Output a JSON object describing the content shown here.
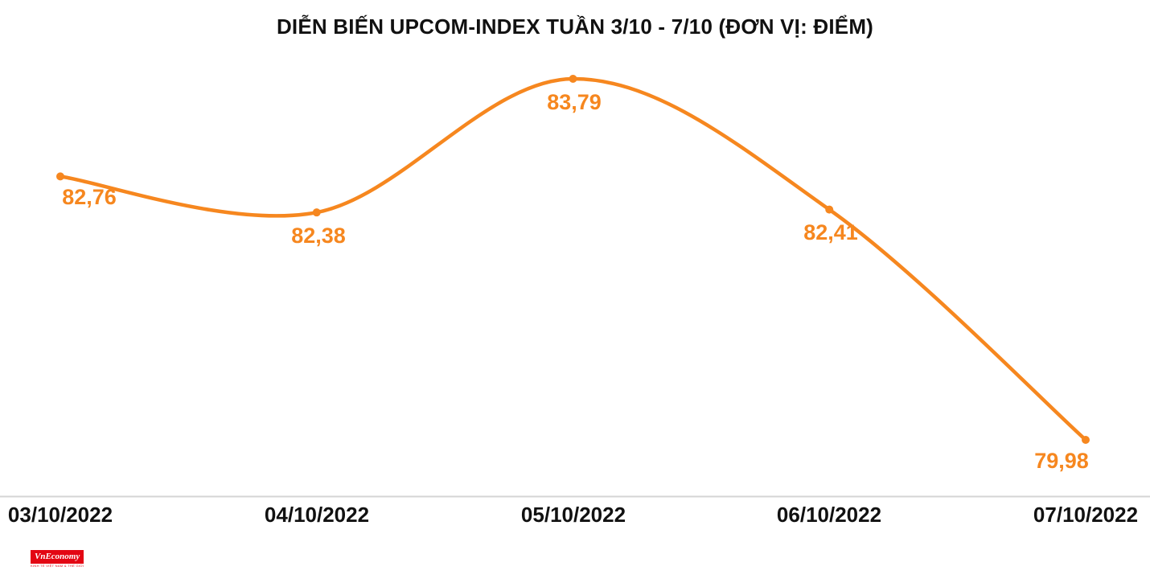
{
  "title": "DIỄN BIẾN UPCOM-INDEX TUẦN 3/10 - 7/10 (ĐƠN VỊ: ĐIỂM)",
  "chart_data": {
    "type": "line",
    "title": "DIỄN BIẾN UPCOM-INDEX TUẦN 3/10 - 7/10 (ĐƠN VỊ: ĐIỂM)",
    "unit": "ĐIỂM",
    "categories": [
      "03/10/2022",
      "04/10/2022",
      "05/10/2022",
      "06/10/2022",
      "07/10/2022"
    ],
    "values": [
      82.76,
      82.38,
      83.79,
      82.41,
      79.98
    ],
    "value_labels": [
      "82,76",
      "82,38",
      "83,79",
      "82,41",
      "79,98"
    ],
    "color": "#F6871F",
    "line_smooth": true,
    "markers": true,
    "grid": false,
    "legend": "none",
    "ylim": [
      79.98,
      83.79
    ],
    "xlabel": "",
    "ylabel": ""
  },
  "logo": {
    "name": "VnEconomy",
    "tagline": "KINH TẾ VIỆT NAM & THẾ GIỚI",
    "color": "#e30613"
  }
}
